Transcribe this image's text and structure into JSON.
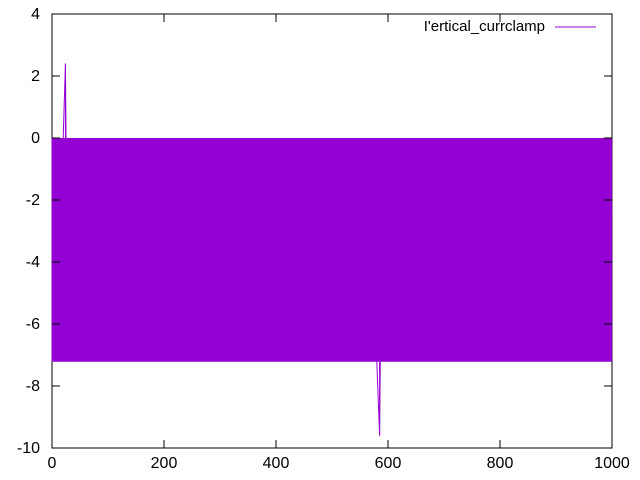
{
  "chart_data": {
    "type": "line",
    "title": "",
    "xlabel": "",
    "ylabel": "",
    "xlim": [
      0,
      1000
    ],
    "ylim": [
      -10,
      4
    ],
    "x_ticks": [
      0,
      200,
      400,
      600,
      800,
      1000
    ],
    "y_ticks": [
      -10,
      -8,
      -6,
      -4,
      -2,
      0,
      2,
      4
    ],
    "x_tick_labels": [
      "0",
      "200",
      "400",
      "600",
      "800",
      "1000"
    ],
    "y_tick_labels": [
      "-10",
      "-8",
      "-6",
      "-4",
      "-2",
      "0",
      "2",
      "4"
    ],
    "grid": false,
    "legend_position": "top-right",
    "series": [
      {
        "name": "I'ertical_currclamp",
        "color": "#9400d3",
        "pattern": "rapid oscillation between approximately 0 and -7.2",
        "x": [
          0,
          5,
          10,
          15,
          20,
          24,
          25,
          30,
          35,
          40,
          45,
          50,
          55,
          60,
          65,
          70,
          75,
          80,
          85,
          90,
          95,
          100,
          110,
          120,
          130,
          140,
          150,
          160,
          170,
          180,
          190,
          200,
          220,
          240,
          260,
          280,
          300,
          320,
          340,
          360,
          380,
          400,
          420,
          440,
          460,
          480,
          495,
          500,
          520,
          540,
          560,
          580,
          585,
          590,
          600,
          620,
          640,
          660,
          680,
          700,
          720,
          740,
          760,
          780,
          800,
          820,
          840,
          860,
          880,
          900,
          920,
          940,
          960,
          980,
          1000
        ],
        "y": [
          0,
          -7.2,
          0,
          -4.8,
          0,
          2.4,
          0,
          -7.2,
          0,
          -4.8,
          0,
          -7.2,
          0,
          -7.2,
          0,
          -7.2,
          0,
          -7.2,
          0,
          -4.8,
          0,
          -7.2,
          0,
          -7.2,
          0,
          -7.2,
          0,
          -7.2,
          0,
          -7.2,
          0,
          -7.2,
          0,
          -7.2,
          0,
          -7.2,
          0,
          -7.2,
          0,
          -7.2,
          0,
          -7.2,
          0,
          -7.2,
          0,
          -7.2,
          -2.4,
          -7.2,
          0,
          -7.2,
          -2.4,
          -7.2,
          -9.6,
          0,
          -7.2,
          -2.4,
          -7.2,
          0,
          -7.2,
          -2.4,
          -7.2,
          0,
          -7.2,
          0,
          -7.2,
          0,
          -7.2,
          0,
          -7.2,
          0,
          -7.2,
          0,
          -7.2,
          0,
          -2.4
        ]
      }
    ]
  }
}
